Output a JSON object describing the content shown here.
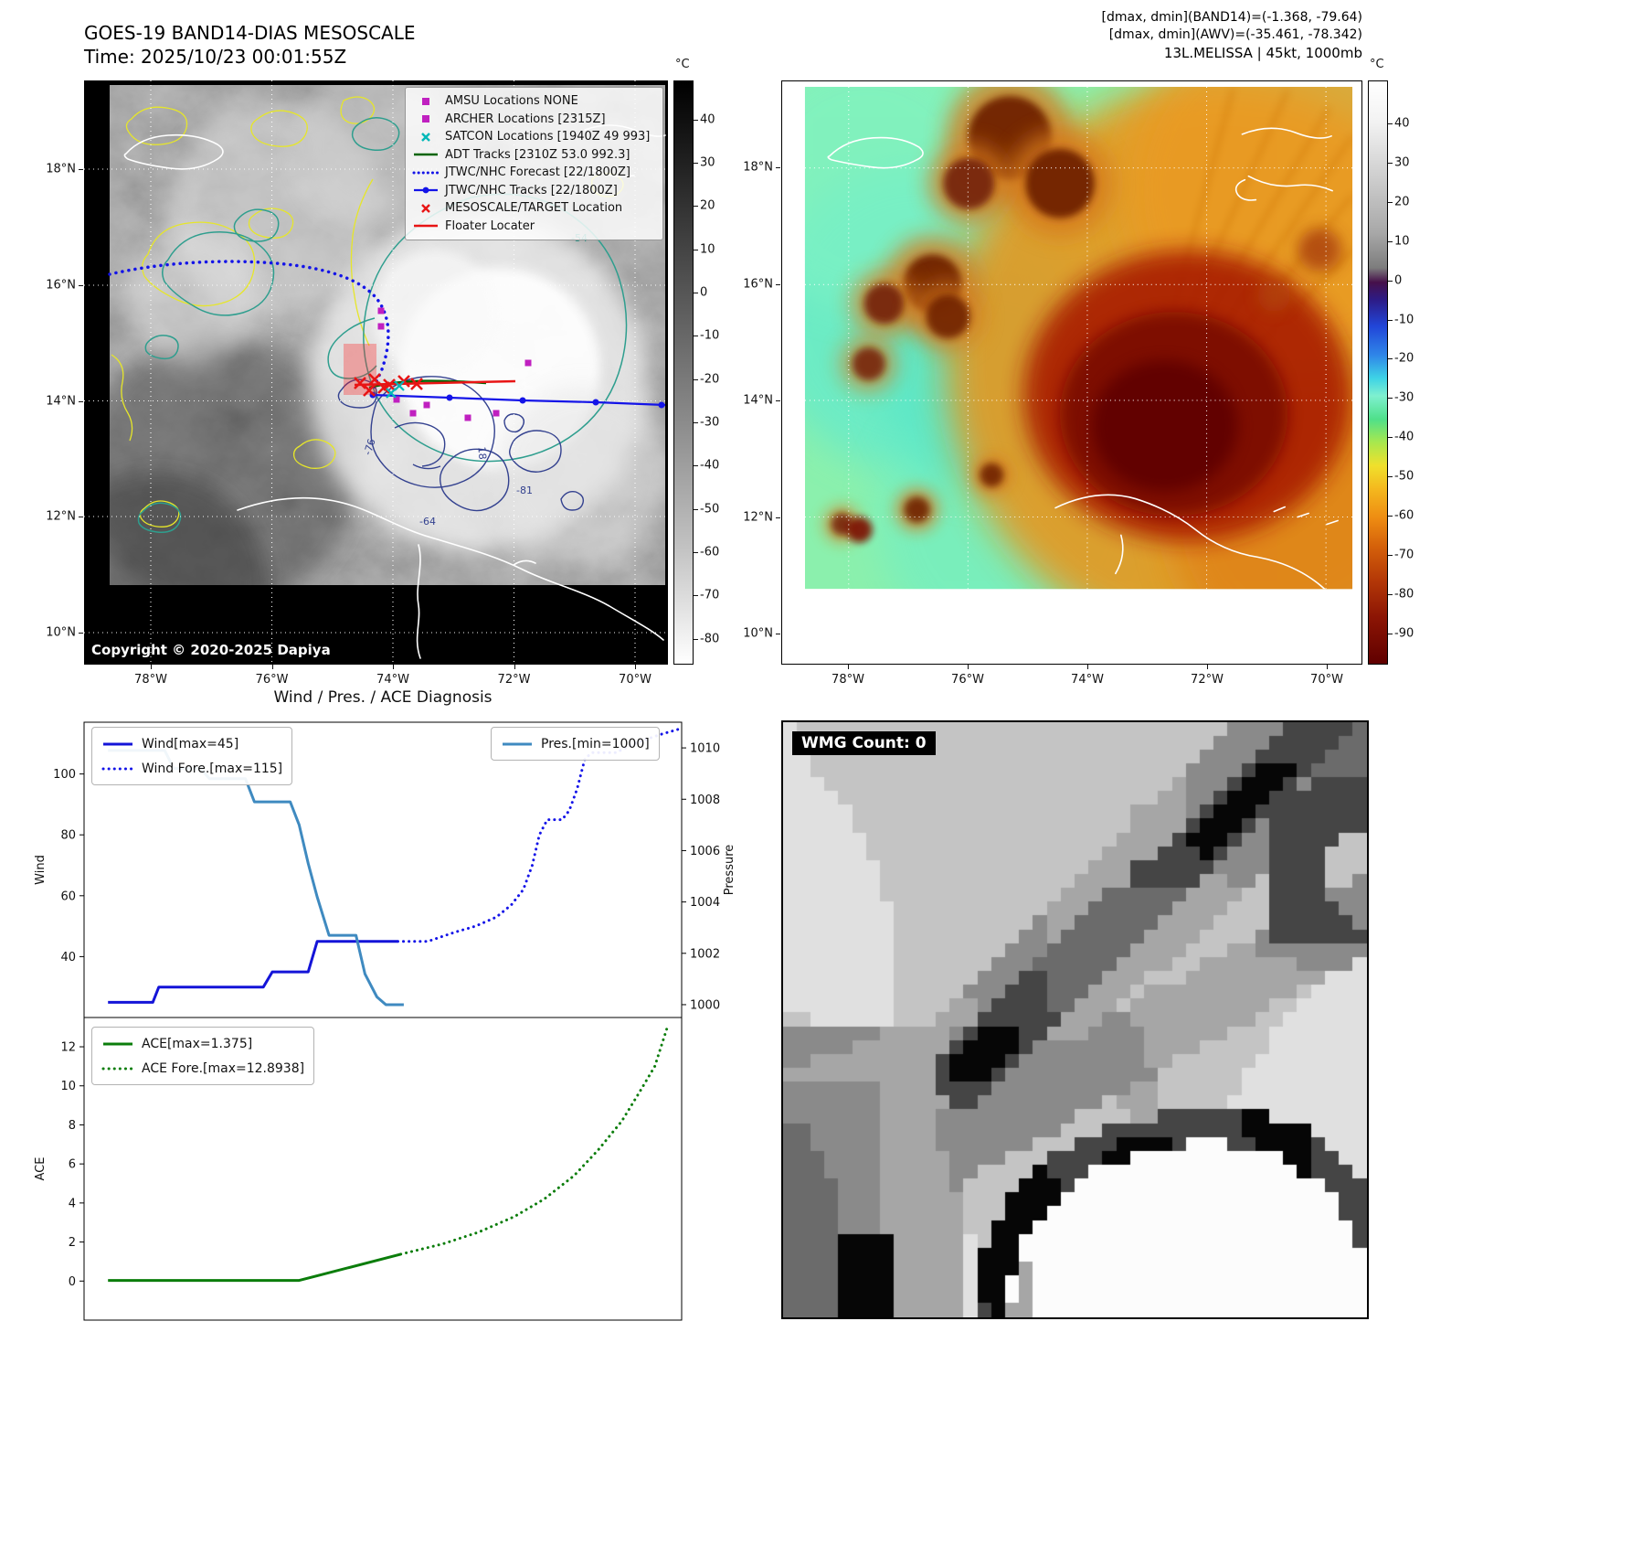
{
  "goes": {
    "title": "GOES-19 BAND14-DIAS MESOSCALE",
    "subtitle": "Time: 2025/10/23 00:01:55Z",
    "copyright": "Copyright © 2020-2025 Dapiya",
    "x_ticks": [
      "78°W",
      "76°W",
      "74°W",
      "72°W",
      "70°W"
    ],
    "y_ticks": [
      "18°N",
      "16°N",
      "14°N",
      "12°N",
      "10°N"
    ],
    "contour_labels": [
      "-54",
      "-76",
      "-64",
      "-81",
      "18"
    ],
    "colorbar": {
      "unit": "°C",
      "top_value": 49,
      "bottom_value": -86,
      "ticks": [
        40,
        30,
        20,
        10,
        0,
        -10,
        -20,
        -30,
        -40,
        -50,
        -60,
        -70,
        -80
      ]
    },
    "legend": [
      {
        "label": "AMSU Locations NONE",
        "marker": "square",
        "color": "#c020c0"
      },
      {
        "label": "ARCHER Locations [2315Z]",
        "marker": "square",
        "color": "#c020c0"
      },
      {
        "label": "SATCON Locations [1940Z 49 993]",
        "marker": "x",
        "color": "#00b8b8"
      },
      {
        "label": "ADT Tracks [2310Z 53.0 992.3]",
        "marker": "line",
        "color": "#046404"
      },
      {
        "label": "JTWC/NHC Forecast [22/1800Z]",
        "marker": "dotted",
        "color": "#1414e8"
      },
      {
        "label": "JTWC/NHC Tracks [22/1800Z]",
        "marker": "line-dot",
        "color": "#1414e8"
      },
      {
        "label": "MESOSCALE/TARGET Location",
        "marker": "x",
        "color": "#e81414"
      },
      {
        "label": "Floater Locater",
        "marker": "line",
        "color": "#e81414"
      }
    ]
  },
  "awv": {
    "info_lines": [
      "[dmax, dmin](BAND14)=(-1.368, -79.64)",
      "[dmax, dmin](AWV)=(-35.461, -78.342)",
      "13L.MELISSA | 45kt, 1000mb"
    ],
    "x_ticks": [
      "78°W",
      "76°W",
      "74°W",
      "72°W",
      "70°W"
    ],
    "y_ticks": [
      "18°N",
      "16°N",
      "14°N",
      "12°N",
      "10°N"
    ],
    "colorbar": {
      "unit": "°C",
      "top_value": 51,
      "bottom_value": -98,
      "ticks": [
        40,
        30,
        20,
        10,
        0,
        -10,
        -20,
        -30,
        -40,
        -50,
        -60,
        -70,
        -80,
        -90
      ]
    }
  },
  "wmg": {
    "badge": "WMG Count: 0"
  },
  "chart_data": [
    {
      "type": "line",
      "id": "wind_pressure",
      "title": "Wind / Pres. / ACE Diagnosis",
      "ylabel_left": "Wind",
      "ylabel_right": "Pressure",
      "ylim_left": [
        20,
        117
      ],
      "yticks_left": [
        40,
        60,
        80,
        100
      ],
      "ylim_right": [
        999.5,
        1011
      ],
      "yticks_right": [
        1000,
        1002,
        1004,
        1006,
        1008,
        1010
      ],
      "x_axis_note": "normalized time 0-1, no x tick labels shown",
      "series": [
        {
          "name": "Wind[max=45]",
          "axis": "left",
          "style": "solid",
          "color": "#1414d8",
          "width": 3,
          "points": [
            [
              0.04,
              25
            ],
            [
              0.115,
              25
            ],
            [
              0.125,
              30
            ],
            [
              0.3,
              30
            ],
            [
              0.315,
              35
            ],
            [
              0.375,
              35
            ],
            [
              0.39,
              45
            ],
            [
              0.525,
              45
            ]
          ]
        },
        {
          "name": "Wind Fore.[max=115]",
          "axis": "left",
          "style": "dotted",
          "color": "#1414e8",
          "width": 3,
          "points": [
            [
              0.525,
              45
            ],
            [
              0.575,
              45
            ],
            [
              0.62,
              48
            ],
            [
              0.655,
              50
            ],
            [
              0.69,
              53
            ],
            [
              0.715,
              57
            ],
            [
              0.735,
              62
            ],
            [
              0.75,
              70
            ],
            [
              0.762,
              80
            ],
            [
              0.775,
              85
            ],
            [
              0.8,
              85
            ],
            [
              0.812,
              88
            ],
            [
              0.825,
              95
            ],
            [
              0.838,
              105
            ],
            [
              0.85,
              107
            ],
            [
              0.89,
              107
            ],
            [
              0.92,
              110
            ],
            [
              0.965,
              113
            ],
            [
              1.0,
              115
            ]
          ]
        },
        {
          "name": "Pres.[min=1000]",
          "axis": "right",
          "style": "solid",
          "color": "#3f8ac0",
          "width": 3,
          "points": [
            [
              0.04,
              1009.9
            ],
            [
              0.135,
              1009.9
            ],
            [
              0.15,
              1009.2
            ],
            [
              0.195,
              1009.2
            ],
            [
              0.21,
              1008.8
            ],
            [
              0.27,
              1008.8
            ],
            [
              0.285,
              1007.9
            ],
            [
              0.345,
              1007.9
            ],
            [
              0.36,
              1007.0
            ],
            [
              0.375,
              1005.5
            ],
            [
              0.39,
              1004.2
            ],
            [
              0.41,
              1002.7
            ],
            [
              0.455,
              1002.7
            ],
            [
              0.47,
              1001.2
            ],
            [
              0.49,
              1000.3
            ],
            [
              0.505,
              1000.0
            ],
            [
              0.535,
              1000.0
            ]
          ]
        }
      ],
      "legends": [
        {
          "pos": "upper-left",
          "entries": [
            {
              "label": "Wind[max=45]",
              "style": "solid",
              "color": "#1414d8"
            },
            {
              "label": "Wind Fore.[max=115]",
              "style": "dotted",
              "color": "#1414e8"
            }
          ]
        },
        {
          "pos": "upper-right",
          "entries": [
            {
              "label": "Pres.[min=1000]",
              "style": "solid",
              "color": "#3f8ac0"
            }
          ]
        }
      ]
    },
    {
      "type": "line",
      "id": "ace",
      "ylabel_left": "ACE",
      "ylim_left": [
        -2,
        13.5
      ],
      "yticks_left": [
        0,
        2,
        4,
        6,
        8,
        10,
        12
      ],
      "series": [
        {
          "name": "ACE[max=1.375]",
          "axis": "left",
          "style": "solid",
          "color": "#0b7d0b",
          "width": 3,
          "points": [
            [
              0.04,
              0.03
            ],
            [
              0.36,
              0.03
            ],
            [
              0.53,
              1.375
            ]
          ]
        },
        {
          "name": "ACE Fore.[max=12.8938]",
          "axis": "left",
          "style": "dotted",
          "color": "#0b7d0b",
          "width": 3,
          "points": [
            [
              0.53,
              1.375
            ],
            [
              0.6,
              1.9
            ],
            [
              0.66,
              2.5
            ],
            [
              0.72,
              3.3
            ],
            [
              0.77,
              4.2
            ],
            [
              0.82,
              5.4
            ],
            [
              0.86,
              6.7
            ],
            [
              0.9,
              8.2
            ],
            [
              0.93,
              9.7
            ],
            [
              0.955,
              11.0
            ],
            [
              0.975,
              12.9
            ]
          ]
        }
      ],
      "legends": [
        {
          "pos": "upper-left",
          "entries": [
            {
              "label": "ACE[max=1.375]",
              "style": "solid",
              "color": "#0b7d0b"
            },
            {
              "label": "ACE Fore.[max=12.8938]",
              "style": "dotted",
              "color": "#0b7d0b"
            }
          ]
        }
      ]
    }
  ]
}
